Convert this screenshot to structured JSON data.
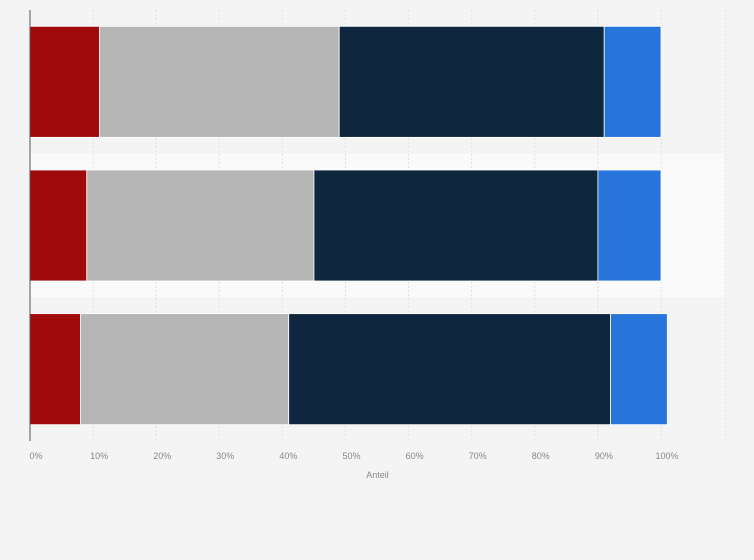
{
  "chart_data": {
    "type": "bar",
    "orientation": "horizontal",
    "stacked": true,
    "xlabel": "Anteil",
    "ylabel": "",
    "xlim": [
      0,
      100
    ],
    "x_unit": "%",
    "x_ticks": [
      "0%",
      "10%",
      "20%",
      "30%",
      "40%",
      "50%",
      "60%",
      "70%",
      "80%",
      "90%",
      "100%"
    ],
    "categories": [
      "",
      "",
      ""
    ],
    "series": [
      {
        "color": "#a00a0a",
        "values": [
          11,
          9,
          8
        ]
      },
      {
        "color": "#b5b5b5",
        "values": [
          38,
          36,
          33
        ]
      },
      {
        "color": "#0f263f",
        "values": [
          42,
          45,
          51
        ]
      },
      {
        "color": "#2775db",
        "values": [
          9,
          10,
          9
        ]
      }
    ],
    "grid": true,
    "legend": "none"
  }
}
